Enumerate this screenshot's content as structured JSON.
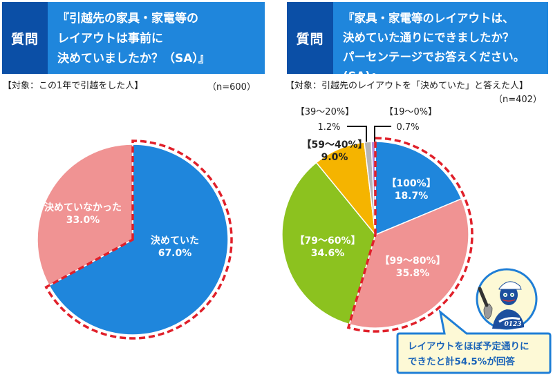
{
  "left_panel": {
    "question_tag": "質問",
    "question_text": "『引越先の家具・家電等の\nレイアウトは事前に\n決めていましたか？（SA）』",
    "target": "【対象：この1年で引越をした人】",
    "n": "（n=600）"
  },
  "right_panel": {
    "question_tag": "質問",
    "question_text": "『家具・家電等のレイアウトは、\n決めていた通りにできましたか？\nパーセンテージでお答えください。(SA)』",
    "target": "【対象：引越先のレイアウトを「決めていた」と答えた人】",
    "n": "（n=402）",
    "callout_line1": "レイアウトをほぼ予定通りに",
    "callout_line2": "できたと計54.5%が回答",
    "mascot_number": "0123"
  },
  "colors": {
    "tag_dark_blue": "#0b4fa6",
    "question_blue": "#1f86dc",
    "highlight_red": "#e0202a",
    "callout_bg": "#fdf9d6",
    "callout_border": "#1f7ed6"
  },
  "chart_data": [
    {
      "type": "pie",
      "title": "引越先の家具・家電等のレイアウトは事前に決めていましたか？（SA）",
      "start": "12 o'clock, clockwise",
      "highlighted": [
        "決めていた"
      ],
      "slices": [
        {
          "label": "決めていた",
          "value": 67.0,
          "display": "67.0%",
          "color": "#1f86dc",
          "label_style": "inside"
        },
        {
          "label": "決めていなかった",
          "value": 33.0,
          "display": "33.0%",
          "color": "#f09393",
          "label_style": "inside"
        }
      ]
    },
    {
      "type": "pie",
      "title": "家具・家電等のレイアウトは、決めていた通りにできましたか？",
      "start": "12 o'clock, clockwise",
      "highlighted": [
        "【100%】",
        "【99～80%】"
      ],
      "slices": [
        {
          "label": "【100%】",
          "value": 18.7,
          "display": "18.7%",
          "color": "#1f86dc",
          "label_style": "inside"
        },
        {
          "label": "【99～80%】",
          "value": 35.8,
          "display": "35.8%",
          "color": "#f09393",
          "label_style": "inside"
        },
        {
          "label": "【79～60%】",
          "value": 34.6,
          "display": "34.6%",
          "color": "#8cc21f",
          "label_style": "inside"
        },
        {
          "label": "【59～40%】",
          "value": 9.0,
          "display": "9.0%",
          "color": "#f5b400",
          "label_style": "inside-dark"
        },
        {
          "label": "【39～20%】",
          "value": 1.2,
          "display": "1.2%",
          "color": "#b5b5b5",
          "label_style": "leader-left"
        },
        {
          "label": "【19～0%】",
          "value": 0.7,
          "display": "0.7%",
          "color": "#b68bd6",
          "label_style": "leader-right"
        }
      ]
    }
  ]
}
